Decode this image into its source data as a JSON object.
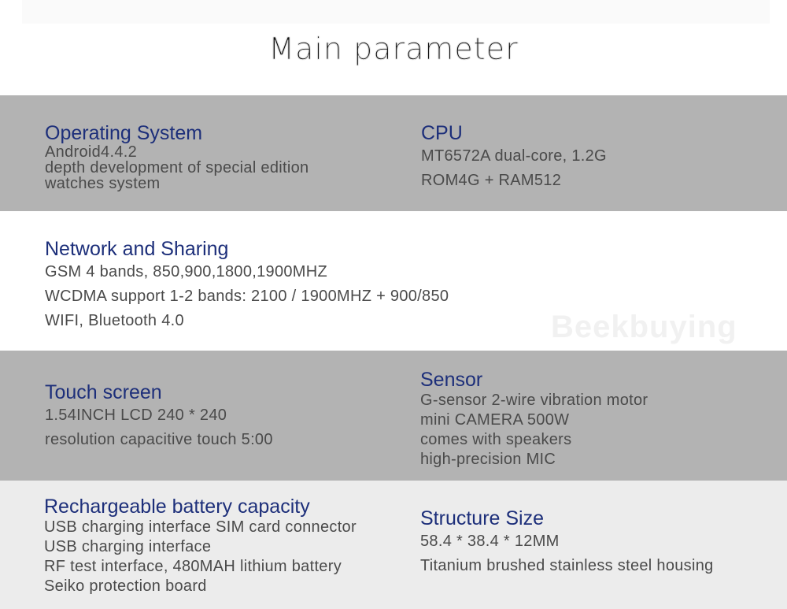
{
  "title": "Main parameter",
  "watermark": "Beekbuying",
  "sections": [
    {
      "heading": "Operating System",
      "lines": [
        "Android4.4.2",
        "depth development of special edition",
        "watches system"
      ]
    },
    {
      "heading": "CPU",
      "lines": [
        "MT6572A dual-core, 1.2G",
        "ROM4G + RAM512"
      ]
    },
    {
      "heading": "Network and Sharing",
      "lines": [
        "GSM 4 bands, 850,900,1800,1900MHZ",
        "WCDMA support 1-2 bands: 2100 / 1900MHZ + 900/850",
        "WIFI, Bluetooth 4.0"
      ]
    },
    {
      "heading": "Touch screen",
      "lines": [
        "1.54INCH LCD 240 * 240",
        "resolution capacitive touch 5:00"
      ]
    },
    {
      "heading": "Sensor",
      "lines": [
        "G-sensor 2-wire vibration motor",
        "mini CAMERA 500W",
        "comes with speakers",
        "high-precision MIC"
      ]
    },
    {
      "heading": "Rechargeable battery capacity",
      "lines": [
        "USB charging interface SIM card connector",
        "USB charging interface",
        "RF test interface, 480MAH lithium battery",
        "Seiko protection board"
      ]
    },
    {
      "heading": "Structure Size",
      "lines": [
        "58.4 * 38.4 * 12MM",
        "Titanium brushed stainless steel housing"
      ]
    }
  ]
}
